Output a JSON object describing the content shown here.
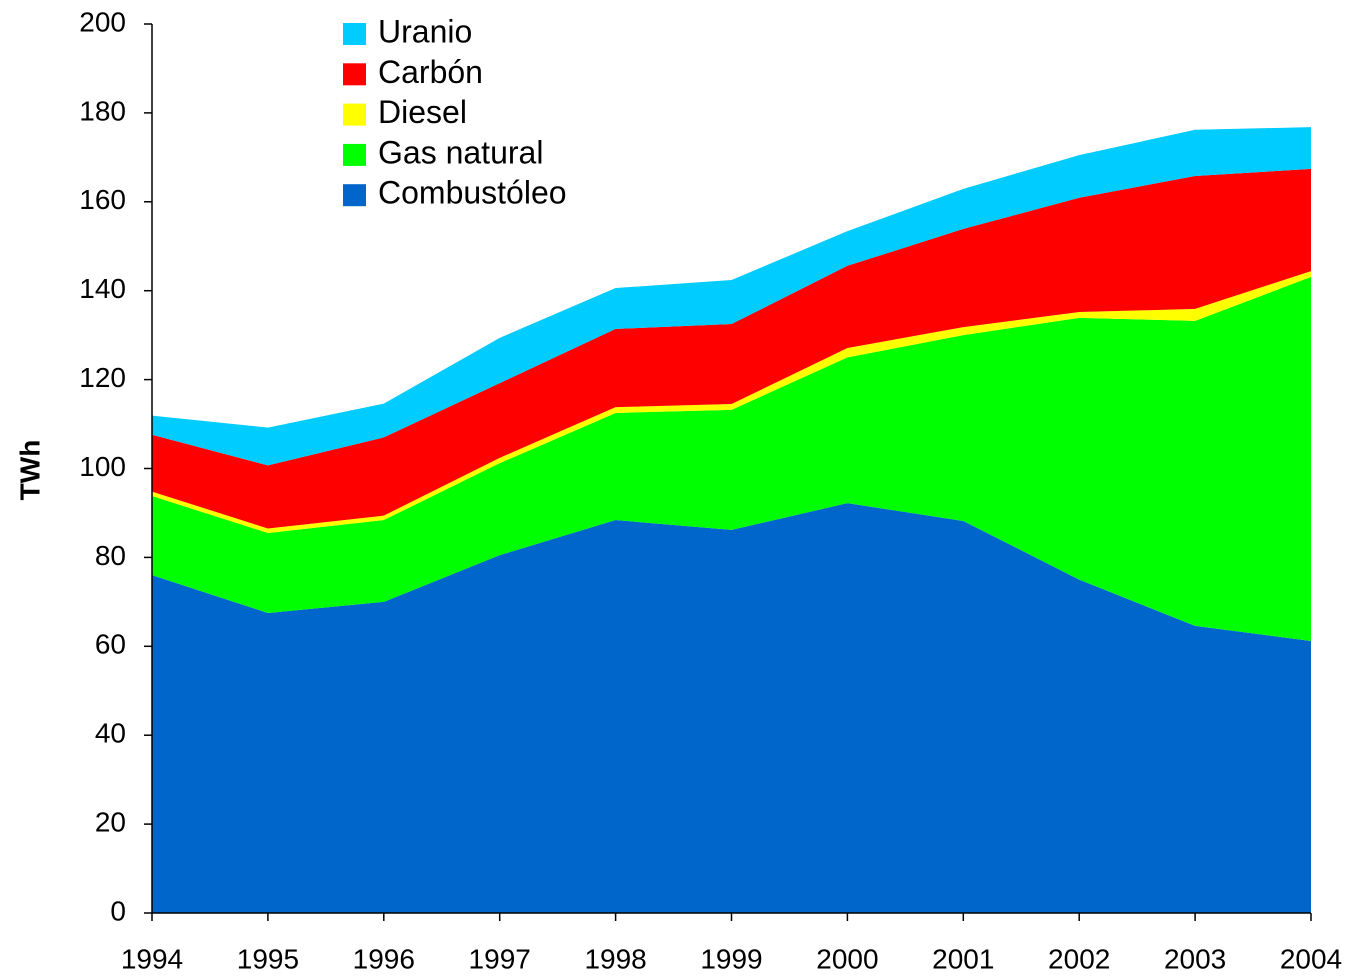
{
  "chart_data": {
    "type": "stacked_area",
    "y_label": "TWh",
    "x": [
      1994,
      1995,
      1996,
      1997,
      1998,
      1999,
      2000,
      2001,
      2002,
      2003,
      2004
    ],
    "series": [
      {
        "name": "Uranio",
        "color": "#00ccff",
        "values": [
          4.3,
          8.5,
          7.6,
          10.2,
          9.2,
          9.9,
          7.8,
          9,
          9.6,
          10.4,
          9.4
        ]
      },
      {
        "name": "Carbón",
        "color": "#ff0000",
        "values": [
          12.8,
          14.2,
          17.6,
          16.8,
          17.6,
          18,
          18.5,
          22.1,
          25.7,
          29.9,
          23
        ]
      },
      {
        "name": "Diesel",
        "color": "#ffff00",
        "values": [
          1,
          1,
          1,
          1.2,
          1.3,
          1.3,
          2.1,
          1.8,
          1.3,
          2.7,
          1.3
        ]
      },
      {
        "name": "Gas natural",
        "color": "#00ff00",
        "values": [
          17.8,
          18,
          18.4,
          20.7,
          24.1,
          27,
          32.8,
          41.8,
          58.9,
          68.6,
          81.9
        ]
      },
      {
        "name": "Combustóleo",
        "color": "#0066cc",
        "values": [
          76,
          67.5,
          70,
          80.5,
          88.4,
          86.2,
          92.2,
          88.2,
          75,
          64.6,
          61.2
        ]
      }
    ],
    "xlim": [
      1994,
      2004
    ],
    "xticks": [
      1994,
      1995,
      1996,
      1997,
      1998,
      1999,
      2000,
      2001,
      2002,
      2003,
      2004
    ],
    "ylim": [
      0,
      200
    ],
    "yticks": [
      0,
      20,
      40,
      60,
      80,
      100,
      120,
      140,
      160,
      180,
      200
    ],
    "legend": "top-left",
    "grid": false
  }
}
